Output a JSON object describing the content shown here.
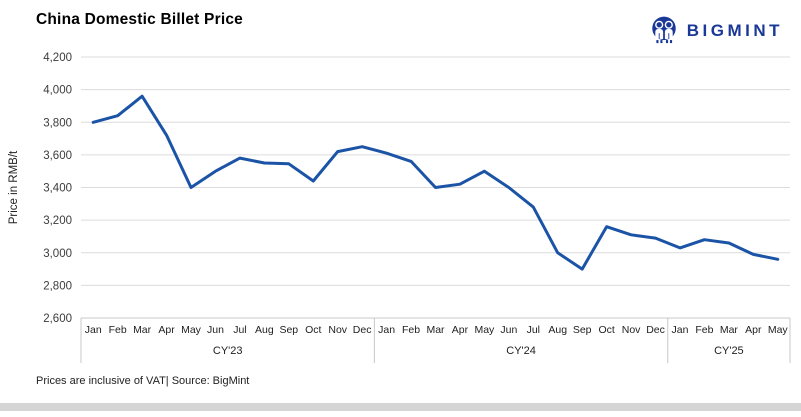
{
  "header": {
    "title": "China Domestic Billet Price",
    "brand": "BIGMINT"
  },
  "chart_data": {
    "type": "line",
    "title": "China Domestic Billet Price",
    "xlabel": "",
    "ylabel": "Price in RMB/t",
    "ylim": [
      2600,
      4200
    ],
    "ytick_step": 200,
    "grid": true,
    "legend": "none",
    "year_groups": [
      {
        "label": "CY'23",
        "months": [
          "Jan",
          "Feb",
          "Mar",
          "Apr",
          "May",
          "Jun",
          "Jul",
          "Aug",
          "Sep",
          "Oct",
          "Nov",
          "Dec"
        ]
      },
      {
        "label": "CY'24",
        "months": [
          "Jan",
          "Feb",
          "Mar",
          "Apr",
          "May",
          "Jun",
          "Jul",
          "Aug",
          "Sep",
          "Oct",
          "Nov",
          "Dec"
        ]
      },
      {
        "label": "CY'25",
        "months": [
          "Jan",
          "Feb",
          "Mar",
          "Apr",
          "May"
        ]
      }
    ],
    "series": [
      {
        "name": "China Domestic Billet Price (RMB/t)",
        "values": [
          3800,
          3840,
          3960,
          3720,
          3400,
          3500,
          3580,
          3550,
          3545,
          3440,
          3620,
          3650,
          3610,
          3560,
          3400,
          3420,
          3500,
          3400,
          3280,
          3000,
          2900,
          3160,
          3110,
          3090,
          3030,
          3080,
          3060,
          2990,
          2960
        ]
      }
    ]
  },
  "footer": {
    "note": "Prices are inclusive of VAT| Source: BigMint"
  },
  "colors": {
    "line": "#1b54a6",
    "logo": "#1a3996",
    "gridline": "#dcdcdc",
    "axis": "#c8c8c8",
    "tick_text": "#3c3c3c"
  }
}
